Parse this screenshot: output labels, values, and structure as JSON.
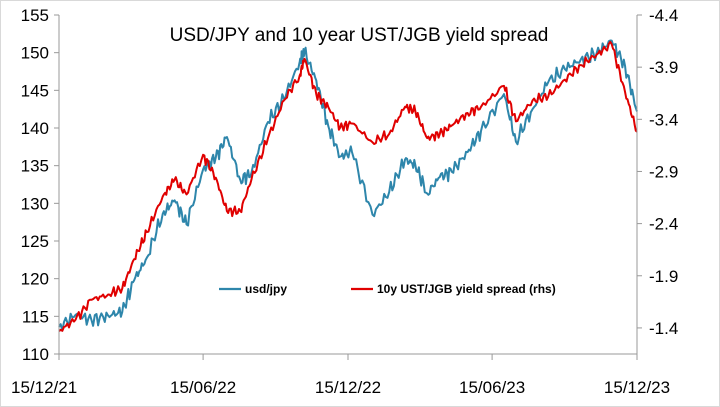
{
  "chart_data": {
    "type": "line",
    "title": "USD/JPY and 10 year UST/JGB yield spread",
    "xlabel": "",
    "ylabel": "",
    "x_ticks": [
      "15/12/21",
      "15/06/22",
      "15/12/22",
      "15/06/23",
      "15/12/23"
    ],
    "x_range": [
      "2021-12-15",
      "2023-12-15"
    ],
    "y_left": {
      "ticks": [
        "110",
        "115",
        "120",
        "125",
        "130",
        "135",
        "140",
        "145",
        "150",
        "155"
      ],
      "range": [
        110,
        155
      ]
    },
    "y_right": {
      "ticks": [
        "-4.4",
        "-3.9",
        "-3.4",
        "-2.9",
        "-2.4",
        "-1.9",
        "-1.4"
      ],
      "range": [
        -4.4,
        -1.15
      ],
      "inverted": true
    },
    "grid": false,
    "legend_position": "lower-center",
    "series": [
      {
        "name": "usd/jpy",
        "axis": "left",
        "color": "#2E86AB",
        "x": [
          "2021-12-15",
          "2022-01-05",
          "2022-01-25",
          "2022-02-15",
          "2022-03-05",
          "2022-03-20",
          "2022-04-05",
          "2022-04-25",
          "2022-05-10",
          "2022-05-25",
          "2022-06-15",
          "2022-07-01",
          "2022-07-15",
          "2022-08-01",
          "2022-08-15",
          "2022-09-05",
          "2022-09-25",
          "2022-10-15",
          "2022-10-21",
          "2022-11-05",
          "2022-11-20",
          "2022-12-05",
          "2022-12-20",
          "2023-01-15",
          "2023-02-05",
          "2023-02-25",
          "2023-03-10",
          "2023-03-25",
          "2023-04-10",
          "2023-04-25",
          "2023-05-15",
          "2023-06-01",
          "2023-06-30",
          "2023-07-15",
          "2023-08-05",
          "2023-08-25",
          "2023-09-15",
          "2023-10-05",
          "2023-10-25",
          "2023-11-13",
          "2023-11-30",
          "2023-12-15"
        ],
        "values": [
          113.6,
          115.2,
          114.5,
          115.1,
          115.6,
          119.8,
          122.8,
          128.6,
          130.4,
          127.2,
          134.5,
          136.1,
          138.8,
          133.1,
          134.0,
          140.8,
          143.9,
          148.8,
          150.1,
          146.3,
          140.3,
          136.2,
          136.8,
          128.5,
          131.5,
          135.8,
          135.1,
          131.3,
          133.5,
          134.2,
          136.8,
          139.6,
          144.5,
          138.2,
          142.5,
          146.1,
          147.8,
          149.1,
          149.9,
          151.6,
          148.2,
          142.2
        ]
      },
      {
        "name": "10y UST/JGB yield spread (rhs)",
        "axis": "right",
        "color": "#E00000",
        "x": [
          "2021-12-15",
          "2022-01-05",
          "2022-01-25",
          "2022-02-15",
          "2022-03-05",
          "2022-03-20",
          "2022-04-05",
          "2022-04-25",
          "2022-05-10",
          "2022-05-25",
          "2022-06-15",
          "2022-07-01",
          "2022-07-15",
          "2022-08-01",
          "2022-08-15",
          "2022-09-05",
          "2022-09-25",
          "2022-10-15",
          "2022-10-21",
          "2022-11-05",
          "2022-11-20",
          "2022-12-05",
          "2022-12-20",
          "2023-01-15",
          "2023-02-05",
          "2023-02-25",
          "2023-03-10",
          "2023-03-25",
          "2023-04-10",
          "2023-04-25",
          "2023-05-15",
          "2023-06-01",
          "2023-06-30",
          "2023-07-15",
          "2023-08-05",
          "2023-08-25",
          "2023-09-15",
          "2023-10-05",
          "2023-10-25",
          "2023-11-13",
          "2023-11-30",
          "2023-12-15"
        ],
        "values": [
          -1.37,
          -1.48,
          -1.67,
          -1.72,
          -1.78,
          -2.06,
          -2.32,
          -2.66,
          -2.82,
          -2.68,
          -3.06,
          -2.84,
          -2.52,
          -2.52,
          -2.82,
          -3.22,
          -3.58,
          -3.82,
          -3.98,
          -3.64,
          -3.52,
          -3.32,
          -3.36,
          -3.18,
          -3.26,
          -3.52,
          -3.48,
          -3.22,
          -3.26,
          -3.34,
          -3.46,
          -3.52,
          -3.72,
          -3.38,
          -3.58,
          -3.62,
          -3.78,
          -3.92,
          -4.02,
          -4.12,
          -3.66,
          -3.28
        ]
      }
    ]
  }
}
